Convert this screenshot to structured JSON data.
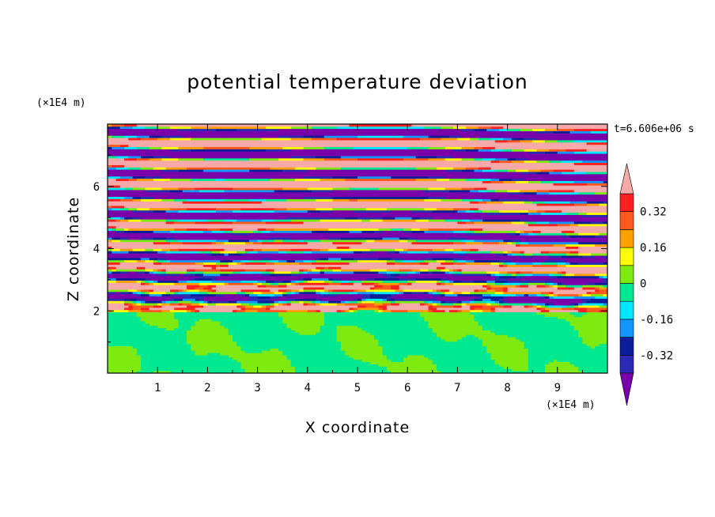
{
  "chart_data": {
    "type": "heatmap",
    "title": "potential temperature deviation",
    "xlabel": "X coordinate",
    "ylabel": "Z coordinate",
    "x_unit": "(×1E4 m)",
    "y_unit": "(×1E4 m)",
    "time_label": "t=6.606e+06 s",
    "x_ticks": [
      "1",
      "2",
      "3",
      "4",
      "5",
      "6",
      "7",
      "8",
      "9"
    ],
    "y_ticks": [
      "2",
      "4",
      "6"
    ],
    "xlim": [
      0,
      10
    ],
    "ylim": [
      0,
      8
    ],
    "colorbar": {
      "labels": [
        "0.32",
        "0.16",
        "0",
        "-0.16",
        "-0.32"
      ],
      "levels": [
        -0.4,
        -0.32,
        -0.24,
        -0.16,
        -0.08,
        0,
        0.08,
        0.16,
        0.24,
        0.32,
        0.4
      ],
      "colors": [
        "#7a00aa",
        "#2a2ab4",
        "#0a1e9a",
        "#1496ff",
        "#00e6ff",
        "#00e890",
        "#7eea10",
        "#ffff00",
        "#ff9f00",
        "#ff5a1e",
        "#ff2020",
        "#f7a8a8"
      ],
      "extend": "both"
    }
  }
}
